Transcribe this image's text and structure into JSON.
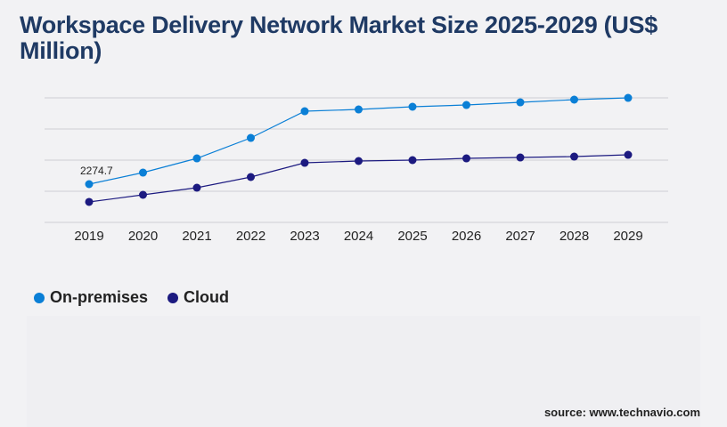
{
  "title": "Workspace Delivery Network Market Size 2025-2029 (US$ Million)",
  "source": "source: www.technavio.com",
  "chart_data": {
    "type": "line",
    "title": "Workspace Delivery Network Market Size 2025-2029 (US$ Million)",
    "x": [
      "2019",
      "2020",
      "2021",
      "2022",
      "2023",
      "2024",
      "2025",
      "2026",
      "2027",
      "2028",
      "2029"
    ],
    "series": [
      {
        "name": "On-premises",
        "color": "#0a7fd6",
        "values": [
          2274.7,
          2962,
          3808,
          5025,
          6612,
          6718,
          6877,
          6982,
          7141,
          7300,
          7405
        ]
      },
      {
        "name": "Cloud",
        "color": "#1c1a80",
        "values": [
          1217,
          1640,
          2063,
          2698,
          3544,
          3650,
          3703,
          3808,
          3861,
          3914,
          4020
        ]
      }
    ],
    "data_labels": [
      {
        "series": "On-premises",
        "x": "2019",
        "text": "2274.7"
      }
    ],
    "ylim": [
      0,
      9250
    ],
    "y_axis_labels_shown": false,
    "grid": true,
    "legend": "bottom-left"
  }
}
